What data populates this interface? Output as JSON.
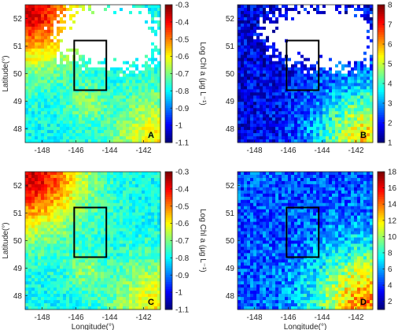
{
  "chart_data": [
    {
      "type": "heatmap",
      "panel_label": "A",
      "xlabel": "",
      "ylabel": "Latitude(°)",
      "colorbar_label": "Log Chl a (μg L⁻¹)",
      "xlim": [
        -149,
        -141
      ],
      "ylim": [
        47.5,
        52.5
      ],
      "x_ticks": [
        "-148",
        "-146",
        "-144",
        "-142"
      ],
      "y_ticks": [
        "48",
        "49",
        "50",
        "51",
        "52"
      ],
      "colorbar_range": [
        -1.1,
        -0.3
      ],
      "colorbar_ticks": [
        "-0.3",
        "-0.4",
        "-0.5",
        "-0.6",
        "-0.7",
        "-0.8",
        "-0.9",
        "-1",
        "-1.1"
      ],
      "colormap": "jet",
      "box": {
        "lon": [
          -146.1,
          -144.2
        ],
        "lat": [
          49.4,
          51.2
        ]
      },
      "missing_color": "#ffffff"
    },
    {
      "type": "heatmap",
      "panel_label": "B",
      "xlabel": "",
      "ylabel": "",
      "colorbar_label": "Valid days",
      "xlim": [
        -149,
        -141
      ],
      "ylim": [
        47.5,
        52.5
      ],
      "x_ticks": [
        "-148",
        "-146",
        "-144",
        "-142"
      ],
      "y_ticks": [
        "48",
        "49",
        "50",
        "51",
        "52"
      ],
      "colorbar_range": [
        1,
        8
      ],
      "colorbar_ticks": [
        "8",
        "7",
        "6",
        "5",
        "4",
        "3",
        "2",
        "1"
      ],
      "colormap": "jet",
      "box": {
        "lon": [
          -146.1,
          -144.2
        ],
        "lat": [
          49.4,
          51.2
        ]
      },
      "missing_color": "#ffffff"
    },
    {
      "type": "heatmap",
      "panel_label": "C",
      "xlabel": "Longitude(°)",
      "ylabel": "Latitude(°)",
      "colorbar_label": "Log Chl a (μg L⁻¹)",
      "xlim": [
        -149,
        -141
      ],
      "ylim": [
        47.5,
        52.5
      ],
      "x_ticks": [
        "-148",
        "-146",
        "-144",
        "-142"
      ],
      "y_ticks": [
        "48",
        "49",
        "50",
        "51",
        "52"
      ],
      "colorbar_range": [
        -1.1,
        -0.3
      ],
      "colorbar_ticks": [
        "-0.3",
        "-0.4",
        "-0.5",
        "-0.6",
        "-0.7",
        "-0.8",
        "-0.9",
        "-1",
        "-1.1"
      ],
      "colormap": "jet",
      "box": {
        "lon": [
          -146.1,
          -144.2
        ],
        "lat": [
          49.4,
          51.2
        ]
      },
      "missing_color": "#ffffff"
    },
    {
      "type": "heatmap",
      "panel_label": "D",
      "xlabel": "Longitude(°)",
      "ylabel": "",
      "colorbar_label": "Valid days",
      "xlim": [
        -149,
        -141
      ],
      "ylim": [
        47.5,
        52.5
      ],
      "x_ticks": [
        "-148",
        "-146",
        "-144",
        "-142"
      ],
      "y_ticks": [
        "48",
        "49",
        "50",
        "51",
        "52"
      ],
      "colorbar_range": [
        1,
        18
      ],
      "colorbar_ticks": [
        "18",
        "16",
        "14",
        "12",
        "10",
        "8",
        "6",
        "4",
        "2"
      ],
      "colormap": "jet",
      "box": {
        "lon": [
          -146.1,
          -144.2
        ],
        "lat": [
          49.4,
          51.2
        ]
      },
      "missing_color": "#ffffff"
    }
  ]
}
